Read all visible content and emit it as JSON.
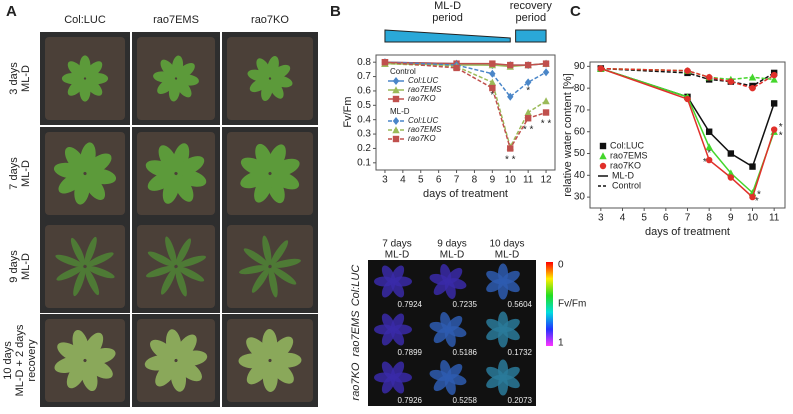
{
  "panel_labels": [
    "A",
    "B",
    "C"
  ],
  "panel_a": {
    "column_headers": [
      "Col:LUC",
      "rao7EMS",
      "rao7KO"
    ],
    "row_labels": [
      [
        "3 days",
        "ML-D"
      ],
      [
        "7 days",
        "ML-D"
      ],
      [
        "9 days",
        "ML-D"
      ],
      [
        "10 days",
        "ML-D + 2 days",
        "recovery"
      ]
    ]
  },
  "panel_b_images": {
    "column_headers": [
      [
        "7 days",
        "ML-D"
      ],
      [
        "9 days",
        "ML-D"
      ],
      [
        "10 days",
        "ML-D"
      ]
    ],
    "row_labels": [
      "Col:LUC",
      "rao7EMS",
      "rao7KO"
    ],
    "values": [
      [
        0.7924,
        0.7235,
        0.5604
      ],
      [
        0.7899,
        0.5186,
        0.1732
      ],
      [
        0.7926,
        0.5258,
        0.2073
      ]
    ],
    "colorbar_labels": [
      "0",
      "Fv/Fm",
      "1"
    ]
  },
  "chart_data": [
    {
      "type": "line",
      "period_labels": [
        [
          "ML-D",
          "period"
        ],
        [
          "recovery",
          "period"
        ]
      ],
      "x_label": "days of treatment",
      "y_label": "Fv/Fm",
      "x": [
        3,
        7,
        9,
        10,
        11,
        12
      ],
      "xlim": [
        2.5,
        12.5
      ],
      "xticks": [
        3,
        4,
        5,
        6,
        7,
        8,
        9,
        10,
        11,
        12
      ],
      "ylim": [
        0.05,
        0.85
      ],
      "yticks": [
        0.1,
        0.2,
        0.3,
        0.4,
        0.5,
        0.6,
        0.7,
        0.8
      ],
      "groups": [
        {
          "name": "Control",
          "dash": false,
          "series": [
            {
              "name": "Col:LUC",
              "color": "#4a86c8",
              "marker": "diamond",
              "values": [
                0.8,
                0.79,
                0.78,
                0.78,
                0.78,
                0.79
              ]
            },
            {
              "name": "rao7EMS",
              "color": "#9bbb59",
              "marker": "triangle",
              "values": [
                0.79,
                0.78,
                0.78,
                0.77,
                0.78,
                0.79
              ]
            },
            {
              "name": "rao7KO",
              "color": "#c0504d",
              "marker": "square",
              "values": [
                0.8,
                0.79,
                0.79,
                0.78,
                0.78,
                0.79
              ]
            }
          ]
        },
        {
          "name": "ML-D",
          "dash": true,
          "series": [
            {
              "name": "Col:LUC",
              "color": "#4a86c8",
              "marker": "diamond",
              "values": [
                0.8,
                0.78,
                0.72,
                0.56,
                0.66,
                0.73
              ]
            },
            {
              "name": "rao7EMS",
              "color": "#9bbb59",
              "marker": "triangle",
              "values": [
                0.79,
                0.77,
                0.66,
                0.21,
                0.45,
                0.53
              ]
            },
            {
              "name": "rao7KO",
              "color": "#c0504d",
              "marker": "square",
              "values": [
                0.8,
                0.76,
                0.62,
                0.2,
                0.41,
                0.45
              ]
            }
          ]
        }
      ],
      "annotations": [
        {
          "text": "*",
          "x": 9,
          "y": 0.57
        },
        {
          "text": "* *",
          "x": 10,
          "y": 0.12
        },
        {
          "text": "* *",
          "x": 11,
          "y": 0.33
        },
        {
          "text": "* *",
          "x": 12,
          "y": 0.37
        },
        {
          "text": "*",
          "x": 11,
          "y": 0.6
        }
      ]
    },
    {
      "type": "line",
      "x_label": "days of treatment",
      "y_label": "relative water content [%]",
      "x": [
        3,
        7,
        8,
        9,
        10,
        11
      ],
      "xlim": [
        2.5,
        11.5
      ],
      "xticks": [
        3,
        4,
        5,
        6,
        7,
        8,
        9,
        10,
        11
      ],
      "ylim": [
        25,
        92
      ],
      "yticks": [
        30,
        40,
        50,
        60,
        70,
        80,
        90
      ],
      "series": [
        {
          "name": "Col:LUC",
          "color": "#111111",
          "marker": "square",
          "values": [
            89,
            76,
            60,
            50,
            44,
            73
          ],
          "control_values": [
            89,
            87,
            84,
            83,
            81,
            87
          ]
        },
        {
          "name": "rao7EMS",
          "color": "#44d62c",
          "marker": "triangle",
          "values": [
            89,
            76,
            53,
            41,
            32,
            60
          ],
          "control_values": [
            89,
            88,
            85,
            84,
            85,
            84
          ]
        },
        {
          "name": "rao7KO",
          "color": "#e0302a",
          "marker": "circle",
          "values": [
            89,
            75,
            47,
            39,
            30,
            61
          ],
          "control_values": [
            89,
            88,
            85,
            83,
            80,
            86
          ]
        }
      ],
      "line_styles": [
        {
          "name": "ML-D",
          "dash": false
        },
        {
          "name": "Control",
          "dash": true
        }
      ],
      "annotations": [
        {
          "text": "*",
          "x": 8,
          "y": 50,
          "color": "#44d62c"
        },
        {
          "text": "*",
          "x": 7.8,
          "y": 46,
          "color": "#e0302a"
        },
        {
          "text": "*",
          "x": 10.3,
          "y": 31,
          "color": "#44d62c"
        },
        {
          "text": "*",
          "x": 10.2,
          "y": 28,
          "color": "#e0302a"
        },
        {
          "text": "*",
          "x": 11.3,
          "y": 62,
          "color": "#44d62c"
        },
        {
          "text": "*",
          "x": 11.3,
          "y": 58,
          "color": "#e0302a"
        }
      ]
    }
  ]
}
